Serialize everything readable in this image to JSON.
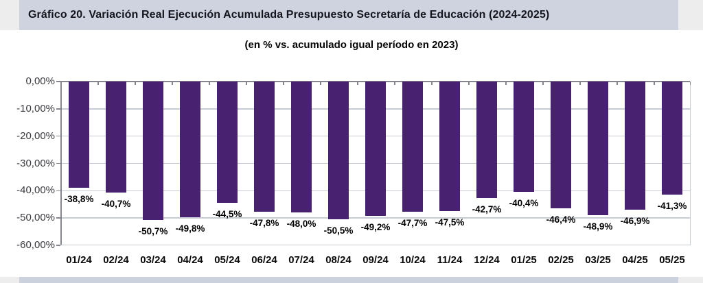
{
  "header": {
    "title": "Gráfico 20. Variación Real Ejecución Acumulada Presupuesto Secretaría de Educación (2024-2025)"
  },
  "chart_data": {
    "type": "bar",
    "title": "Gráfico 20. Variación Real Ejecución Acumulada Presupuesto Secretaría de Educación (2024-2025)",
    "subtitle": "(en % vs. acumulado igual período en 2023)",
    "categories": [
      "01/24",
      "02/24",
      "03/24",
      "04/24",
      "05/24",
      "06/24",
      "07/24",
      "08/24",
      "09/24",
      "10/24",
      "11/24",
      "12/24",
      "01/25",
      "02/25",
      "03/25",
      "04/25",
      "05/25"
    ],
    "values": [
      -38.8,
      -40.7,
      -50.7,
      -49.8,
      -44.5,
      -47.8,
      -48.0,
      -50.5,
      -49.2,
      -47.7,
      -47.5,
      -42.7,
      -40.4,
      -46.4,
      -48.9,
      -46.9,
      -41.3
    ],
    "data_labels": [
      "-38,8%",
      "-40,7%",
      "-50,7%",
      "-49,8%",
      "-44,5%",
      "-47,8%",
      "-48,0%",
      "-50,5%",
      "-49,2%",
      "-47,7%",
      "-47,5%",
      "-42,7%",
      "-40,4%",
      "-46,4%",
      "-48,9%",
      "-46,9%",
      "-41,3%"
    ],
    "y_tick_labels": [
      "0,00%",
      "-10,00%",
      "-20,00%",
      "-30,00%",
      "-40,00%",
      "-50,00%",
      "-60,00%"
    ],
    "ylim": [
      -60,
      0
    ],
    "grid": true,
    "legend": false,
    "bar_color": "#482270"
  },
  "colors": {
    "bar": "#482270",
    "title_band": "#cfd3e0",
    "bottom_band": "#ccd1de",
    "page_margin": "#ededee",
    "gridline": "#c7cbd3",
    "axis_line": "#85858d",
    "title_text": "#14141c"
  }
}
